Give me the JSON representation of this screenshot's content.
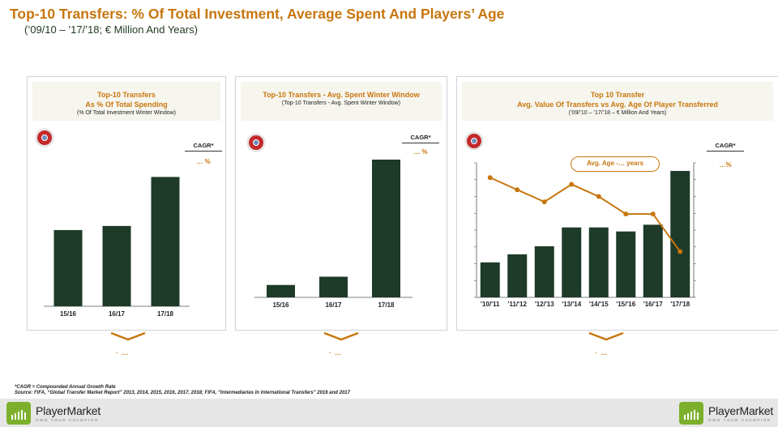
{
  "header": {
    "title": "Top-10 Transfers: % Of Total Investment, Average Spent And Players’ Age",
    "subtitle": "(’09/10 – ’17/’18; € Million And Years)"
  },
  "colors": {
    "accent": "#c8760e",
    "bar": "#1e3a28",
    "line": "#c8760e"
  },
  "panels": [
    {
      "head_line1": "Top-10 Transfers",
      "head_line2": "As % Of Total Spending",
      "head_sub": "(% Of Total Investment Winter Window)",
      "logo_icon": "uefa-logo-icon",
      "cagr_label": "CAGR*",
      "cagr_value": "… %",
      "bottom_text": "…"
    },
    {
      "head_line1": "Top-10 Transfers - Avg. Spent Winter Window",
      "head_sub": "(Top-10 Transfers - Avg. Spent Winter Window)",
      "logo_icon": "uefa-logo-icon",
      "cagr_label": "CAGR*",
      "cagr_value": "… %",
      "bottom_text": "…"
    },
    {
      "head_line1": "Top 10 Transfer",
      "head_line2": "Avg. Value Of Transfers vs Avg. Age Of Player Transferred",
      "head_sub": "(’09/’10 – ’17/’18 – € Million And Years)",
      "logo_icon": "uefa-logo-icon",
      "cagr_label": "CAGR*",
      "cagr_value": "…%",
      "age_label": "Avg. Age -… years",
      "bottom_text": "…"
    }
  ],
  "chart_data": [
    {
      "type": "bar",
      "categories": [
        "15/16",
        "16/17",
        "17/18"
      ],
      "values": [
        56,
        59,
        95
      ],
      "ylim": [
        0,
        100
      ],
      "grid": false
    },
    {
      "type": "bar",
      "categories": [
        "15/16",
        "16/17",
        "17/18"
      ],
      "values": [
        9,
        15,
        100
      ],
      "ylim": [
        0,
        100
      ],
      "grid": false
    },
    {
      "type": "bar+line",
      "categories": [
        "'10/'11",
        "'11/'12",
        "'12/'13",
        "'13/'14",
        "'14/'15",
        "'15/'16",
        "'16/'17",
        "'17/'18"
      ],
      "values": [
        26,
        32,
        38,
        52,
        52,
        49,
        54,
        94
      ],
      "line_values": [
        89,
        80,
        71,
        84,
        75,
        62,
        62,
        34
      ],
      "ylim": [
        0,
        100
      ],
      "line_ylim": [
        0,
        100
      ],
      "grid": false
    }
  ],
  "footnotes": {
    "cagr": "*CAGR = Compounded Annual Growth Rate",
    "source": "Source: FIFA, “Global Transfer Market Report” 2013, 2014, 2015, 2016, 2017, 2018; FIFA, “Intermediaries In International Transfers” 2016 and 2017"
  },
  "brand": {
    "name": "PlayerMarket",
    "tagline": "OWN YOUR CHAMPION",
    "icon": "playermarket-logo-icon"
  }
}
